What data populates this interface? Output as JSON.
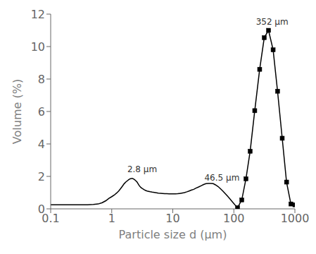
{
  "chart_data": {
    "type": "line",
    "title": "",
    "xlabel": "Particle size d (μm)",
    "ylabel": "Volume (%)",
    "log": "x",
    "grid": false,
    "xlim": [
      0.1,
      1000
    ],
    "xticks": [
      0.1,
      1,
      10,
      100,
      1000
    ],
    "ylim": [
      0,
      12
    ],
    "yticks": [
      0,
      2,
      4,
      6,
      8,
      10,
      12
    ],
    "annotations": [
      {
        "text": "2.8 μm",
        "x": 1.8,
        "y": 2.25
      },
      {
        "text": "46.5 μm",
        "x": 33,
        "y": 1.75
      },
      {
        "text": "352 μm",
        "x": 230,
        "y": 11.35
      }
    ],
    "series": [
      {
        "color": "#000000",
        "marker": "none",
        "x": [
          0.1,
          0.15,
          0.2,
          0.25,
          0.3,
          0.35,
          0.4,
          0.5,
          0.6,
          0.7,
          0.8,
          0.9,
          1.0,
          1.1,
          1.2,
          1.3,
          1.4,
          1.5,
          1.6,
          1.7,
          1.8,
          1.9,
          2.0,
          2.1,
          2.2,
          2.3,
          2.4,
          2.5,
          2.6,
          2.7,
          2.8,
          2.9,
          3.0,
          3.1,
          3.2,
          3.4,
          3.6,
          3.8,
          4.0,
          4.3,
          4.6,
          5.0,
          5.4,
          5.8,
          6.3,
          6.8,
          7.4,
          8.0,
          8.7,
          9.4,
          10.2,
          11.0,
          12.0,
          13.0,
          14.0,
          15.5,
          17.0,
          18.5,
          20.0,
          22.0,
          24.0,
          26.5,
          29.0,
          32.0,
          35.0,
          38.5,
          42.0,
          46.0,
          50.0,
          55.0,
          60.0,
          66.0,
          72.0,
          79.0,
          86.0,
          94.0,
          100.0,
          108.0,
          115.0
        ],
        "values": [
          0.25,
          0.25,
          0.25,
          0.25,
          0.25,
          0.25,
          0.25,
          0.27,
          0.3,
          0.38,
          0.5,
          0.65,
          0.75,
          0.85,
          0.97,
          1.1,
          1.25,
          1.4,
          1.55,
          1.65,
          1.73,
          1.8,
          1.85,
          1.87,
          1.87,
          1.83,
          1.78,
          1.72,
          1.65,
          1.55,
          1.45,
          1.38,
          1.32,
          1.28,
          1.24,
          1.18,
          1.13,
          1.1,
          1.08,
          1.05,
          1.03,
          1.01,
          0.99,
          0.97,
          0.96,
          0.95,
          0.94,
          0.93,
          0.92,
          0.92,
          0.92,
          0.92,
          0.93,
          0.95,
          0.97,
          1.0,
          1.05,
          1.1,
          1.15,
          1.2,
          1.28,
          1.35,
          1.42,
          1.5,
          1.55,
          1.57,
          1.57,
          1.55,
          1.48,
          1.38,
          1.25,
          1.1,
          0.95,
          0.78,
          0.62,
          0.45,
          0.33,
          0.18,
          0.07
        ]
      },
      {
        "color": "#000000",
        "marker": "square",
        "x": [
          115.0,
          135,
          158,
          185,
          220,
          265,
          315,
          370,
          440,
          520,
          620,
          730,
          860,
          1000
        ],
        "values": [
          0.07,
          0.55,
          1.85,
          3.55,
          6.05,
          8.6,
          10.55,
          11.0,
          9.8,
          7.25,
          4.35,
          1.65,
          0.3,
          0.25
        ]
      }
    ]
  }
}
